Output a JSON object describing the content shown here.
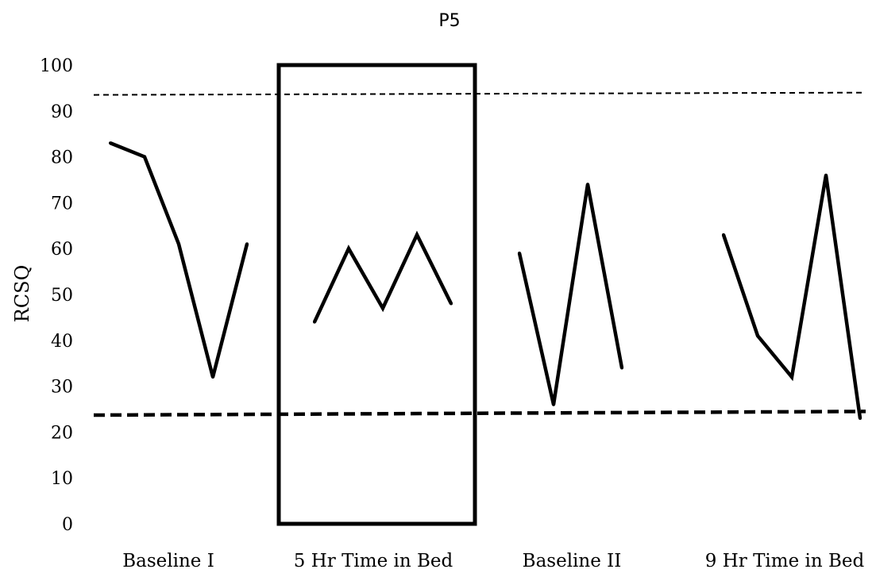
{
  "chart_data": {
    "type": "line",
    "title": "P5",
    "xlabel": "",
    "ylabel": "RCSQ",
    "ylim": [
      0,
      100
    ],
    "yticks": [
      0,
      10,
      20,
      30,
      40,
      50,
      60,
      70,
      80,
      90,
      100
    ],
    "grid": false,
    "legend": "none",
    "phases": [
      {
        "label": "Baseline I",
        "values": [
          83,
          80,
          61,
          32,
          61
        ]
      },
      {
        "label": "5 Hr Time in Bed",
        "values": [
          44,
          60,
          47,
          63,
          48
        ]
      },
      {
        "label": "Baseline II",
        "values": [
          59,
          26,
          74,
          34
        ]
      },
      {
        "label": "9 Hr Time in Bed",
        "values": [
          63,
          41,
          32,
          76,
          23
        ]
      }
    ],
    "reference_lines": [
      {
        "name": "upper-threshold",
        "start_value": 93.5,
        "end_value": 94,
        "style": "dashed-thin"
      },
      {
        "name": "lower-threshold",
        "start_value": 23.7,
        "end_value": 24.5,
        "style": "dashed-thick"
      }
    ],
    "highlighted_phase": "5 Hr Time in Bed",
    "colors": {
      "line": "#000000",
      "background": "#ffffff"
    }
  }
}
